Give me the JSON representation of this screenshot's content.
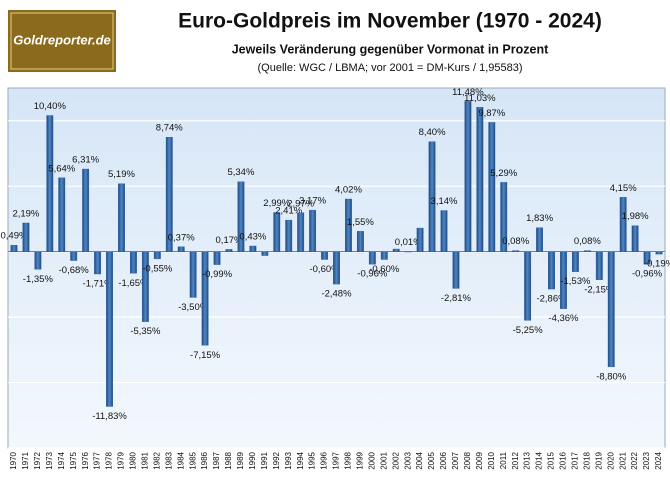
{
  "chart_data": {
    "type": "bar",
    "title": "Euro-Goldpreis im November (1970 - 2024)",
    "subtitle": "Jeweils Veränderung gegenüber Vormonat in Prozent",
    "source": "(Quelle: WGC / LBMA; vor 2001 = DM-Kurs / 1,95583)",
    "logo": "Goldreporter.de",
    "categories": [
      "1970",
      "1971",
      "1972",
      "1973",
      "1974",
      "1975",
      "1976",
      "1977",
      "1978",
      "1979",
      "1980",
      "1981",
      "1982",
      "1983",
      "1984",
      "1985",
      "1986",
      "1987",
      "1988",
      "1989",
      "1990",
      "1991",
      "1992",
      "1993",
      "1994",
      "1995",
      "1996",
      "1997",
      "1998",
      "1999",
      "2000",
      "2001",
      "2002",
      "2003",
      "2004",
      "2005",
      "2006",
      "2007",
      "2008",
      "2009",
      "2010",
      "2011",
      "2012",
      "2013",
      "2014",
      "2015",
      "2016",
      "2017",
      "2018",
      "2019",
      "2020",
      "2021",
      "2022",
      "2023",
      "2024"
    ],
    "values": [
      0.49,
      2.19,
      -1.35,
      10.4,
      5.64,
      -0.68,
      6.31,
      -1.71,
      -11.83,
      5.19,
      -1.65,
      -5.35,
      -0.55,
      8.74,
      0.37,
      -3.5,
      -7.15,
      -0.99,
      0.17,
      5.34,
      0.43,
      -0.3,
      2.99,
      2.41,
      2.97,
      3.17,
      -0.6,
      -2.48,
      4.02,
      1.55,
      -0.96,
      -0.6,
      0.2,
      0.01,
      1.8,
      8.4,
      3.14,
      -2.81,
      11.48,
      11.03,
      9.87,
      5.29,
      0.08,
      -5.25,
      1.83,
      -2.86,
      -4.36,
      -1.53,
      0.08,
      -2.15,
      -8.8,
      4.15,
      1.98,
      -0.96,
      -0.19
    ],
    "value_labels": [
      "0,49%",
      "2,19%",
      "-1,35%",
      "10,40%",
      "5,64%",
      "-0,68%",
      "6,31%",
      "-1,71%",
      "-11,83%",
      "5,19%",
      "-1,65%",
      "-5,35%",
      "-0,55%",
      "8,74%",
      "0,37%",
      "-3,50%",
      "-7,15%",
      "-0,99%",
      "0,17%",
      "5,34%",
      "0,43%",
      null,
      "2,99%",
      "2,41%",
      "2,97%",
      "3,17%",
      "-0,60%",
      "-2,48%",
      "4,02%",
      "1,55%",
      "-0,96%",
      "-0,60%",
      null,
      "0,01%",
      null,
      "8,40%",
      "3,14%",
      "-2,81%",
      "11,48%",
      "11,03%",
      "9,87%",
      "5,29%",
      "0,08%",
      "-5,25%",
      "1,83%",
      "-2,86%",
      "-4,36%",
      "-1,53%",
      "0,08%",
      "-2,15%",
      "-8,80%",
      "4,15%",
      "1,98%",
      "-0,96%",
      "-0,19%"
    ],
    "color": "#2e5f9e",
    "ylim": [
      -15,
      12.5
    ],
    "yticks": [
      -15,
      -10,
      -5,
      0,
      5,
      10
    ],
    "grid": true
  }
}
